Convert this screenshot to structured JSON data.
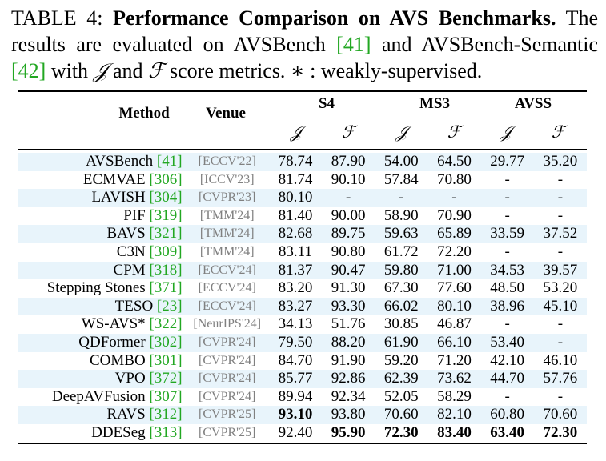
{
  "caption": {
    "label": "TABLE 4:",
    "title": "Performance Comparison on AVS Benchmarks.",
    "t1": "The results are evaluated on AVSBench",
    "c1": "[41]",
    "t2": "and AVSBench-Semantic",
    "c2": "[42]",
    "t3": "with",
    "j": "𝒥",
    "t4": "and",
    "f": "ℱ",
    "t5": "score metrics. ∗ : weakly-supervised."
  },
  "header": {
    "method": "Method",
    "venue": "Venue",
    "s4": "S4",
    "ms3": "MS3",
    "avss": "AVSS",
    "j": "𝒥",
    "f": "ℱ"
  },
  "rows": [
    {
      "name": "AVSBench",
      "cite": "[41]",
      "venue": "[ECCV'22]",
      "v": [
        "78.74",
        "87.90",
        "54.00",
        "64.50",
        "29.77",
        "35.20"
      ]
    },
    {
      "name": "ECMVAE",
      "cite": "[306]",
      "venue": "[ICCV'23]",
      "v": [
        "81.74",
        "90.10",
        "57.84",
        "70.80",
        "-",
        "-"
      ]
    },
    {
      "name": "LAVISH",
      "cite": "[304]",
      "venue": "[CVPR'23]",
      "v": [
        "80.10",
        "-",
        "-",
        "-",
        "-",
        "-"
      ]
    },
    {
      "name": "PIF",
      "cite": "[319]",
      "venue": "[TMM'24]",
      "v": [
        "81.40",
        "90.00",
        "58.90",
        "70.90",
        "-",
        "-"
      ]
    },
    {
      "name": "BAVS",
      "cite": "[321]",
      "venue": "[TMM'24]",
      "v": [
        "82.68",
        "89.75",
        "59.63",
        "65.89",
        "33.59",
        "37.52"
      ]
    },
    {
      "name": "C3N",
      "cite": "[309]",
      "venue": "[TMM'24]",
      "v": [
        "83.11",
        "90.80",
        "61.72",
        "72.20",
        "-",
        "-"
      ]
    },
    {
      "name": "CPM",
      "cite": "[318]",
      "venue": "[ECCV'24]",
      "v": [
        "81.37",
        "90.47",
        "59.80",
        "71.00",
        "34.53",
        "39.57"
      ]
    },
    {
      "name": "Stepping Stones",
      "cite": "[371]",
      "venue": "[ECCV'24]",
      "v": [
        "83.20",
        "91.30",
        "67.30",
        "77.60",
        "48.50",
        "53.20"
      ]
    },
    {
      "name": "TESO",
      "cite": "[23]",
      "venue": "[ECCV'24]",
      "v": [
        "83.27",
        "93.30",
        "66.02",
        "80.10",
        "38.96",
        "45.10"
      ]
    },
    {
      "name": "WS-AVS*",
      "cite": "[322]",
      "venue": "[NeurIPS'24]",
      "v": [
        "34.13",
        "51.76",
        "30.85",
        "46.87",
        "-",
        "-"
      ]
    },
    {
      "name": "QDFormer",
      "cite": "[302]",
      "venue": "[CVPR'24]",
      "v": [
        "79.50",
        "88.20",
        "61.90",
        "66.10",
        "53.40",
        "-"
      ]
    },
    {
      "name": "COMBO",
      "cite": "[301]",
      "venue": "[CVPR'24]",
      "v": [
        "84.70",
        "91.90",
        "59.20",
        "71.20",
        "42.10",
        "46.10"
      ]
    },
    {
      "name": "VPO",
      "cite": "[372]",
      "venue": "[CVPR'24]",
      "v": [
        "85.77",
        "92.86",
        "62.39",
        "73.62",
        "44.70",
        "57.76"
      ]
    },
    {
      "name": "DeepAVFusion",
      "cite": "[307]",
      "venue": "[CVPR'24]",
      "v": [
        "89.94",
        "92.34",
        "52.05",
        "58.29",
        "-",
        "-"
      ]
    },
    {
      "name": "RAVS",
      "cite": "[312]",
      "venue": "[CVPR'25]",
      "v": [
        "93.10",
        "93.80",
        "70.60",
        "82.10",
        "60.80",
        "70.60"
      ],
      "bold": [
        0
      ]
    },
    {
      "name": "DDESeg",
      "cite": "[313]",
      "venue": "[CVPR'25]",
      "v": [
        "92.40",
        "95.90",
        "72.30",
        "83.40",
        "63.40",
        "72.30"
      ],
      "bold": [
        1,
        2,
        3,
        4,
        5
      ]
    }
  ]
}
